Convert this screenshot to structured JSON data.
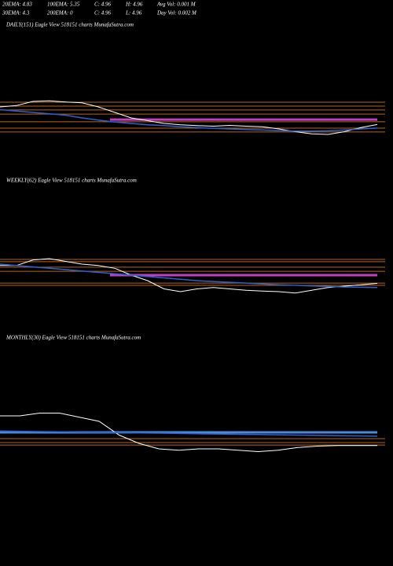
{
  "header": {
    "rows": [
      [
        "20EMA: 4.83",
        "100EMA: 5.35",
        "C: 4.96",
        "H: 4.96",
        "Avg Vol: 0.001 M"
      ],
      [
        "30EMA: 4.3",
        "200EMA: 0",
        "C: 4.96",
        "L: 4.96",
        "Day Vol: 0.002 M"
      ]
    ]
  },
  "chart_data": [
    {
      "type": "line",
      "title": "DAILY(151) Eagle View  518151 charts MunafaSutra.com",
      "ylim": [
        4.2,
        6.2
      ],
      "levels": [
        5.77,
        5.63,
        5.49,
        5.34,
        5.06,
        4.83,
        4.69
      ],
      "level_color": "#b8651b",
      "band": 5.14,
      "band_color": "#c040c0",
      "series": [
        {
          "color": "#ffffff",
          "values": [
            5.6,
            5.65,
            5.8,
            5.82,
            5.78,
            5.75,
            5.6,
            5.4,
            5.2,
            5.1,
            5.0,
            4.95,
            4.92,
            4.9,
            4.93,
            4.9,
            4.88,
            4.8,
            4.7,
            4.62,
            4.6,
            4.7,
            4.85,
            4.96
          ]
        },
        {
          "color": "#2f5fd0",
          "values": [
            5.5,
            5.45,
            5.4,
            5.35,
            5.3,
            5.2,
            5.12,
            5.05,
            5.0,
            4.95,
            4.92,
            4.88,
            4.85,
            4.82,
            4.8,
            4.78,
            4.76,
            4.74,
            4.72,
            4.72,
            4.73,
            4.76,
            4.8,
            4.83
          ]
        }
      ]
    },
    {
      "type": "line",
      "title": "WEEKLY(62) Eagle View  518151 charts MunafaSutra.com",
      "ylim": [
        4.2,
        6.2
      ],
      "levels": [
        5.77,
        5.69,
        5.49,
        5.34,
        4.91,
        4.83
      ],
      "level_color": "#b8651b",
      "band": 5.2,
      "band_color": "#c040c0",
      "series": [
        {
          "color": "#ffffff",
          "values": [
            5.55,
            5.55,
            5.75,
            5.8,
            5.7,
            5.6,
            5.55,
            5.45,
            5.2,
            5.0,
            4.7,
            4.6,
            4.7,
            4.75,
            4.7,
            4.65,
            4.62,
            4.6,
            4.55,
            4.65,
            4.75,
            4.8,
            4.85,
            4.9
          ]
        },
        {
          "color": "#2f5fd0",
          "values": [
            5.6,
            5.55,
            5.5,
            5.45,
            5.4,
            5.35,
            5.3,
            5.25,
            5.2,
            5.15,
            5.1,
            5.05,
            5.0,
            4.97,
            4.94,
            4.91,
            4.88,
            4.85,
            4.83,
            4.81,
            4.79,
            4.77,
            4.76,
            4.75
          ]
        }
      ]
    },
    {
      "type": "line",
      "title": "MONTHLY(30) Eagle View  518151 charts MunafaSutra.com",
      "ylim": [
        4.2,
        6.2
      ],
      "levels": [
        4.97,
        4.83,
        4.74
      ],
      "level_color": "#b8651b",
      "band": 5.2,
      "band_color": "#4a8ad8",
      "series": [
        {
          "color": "#ffffff",
          "values": [
            5.8,
            5.8,
            5.9,
            5.9,
            5.75,
            5.6,
            5.1,
            4.8,
            4.6,
            4.55,
            4.6,
            4.6,
            4.55,
            4.5,
            4.55,
            4.65,
            4.7,
            4.72,
            4.72,
            4.72
          ]
        },
        {
          "color": "#2f5fd0",
          "values": [
            5.25,
            5.24,
            5.23,
            5.22,
            5.21,
            5.2,
            5.19,
            5.18,
            5.17,
            5.16,
            5.15,
            5.14,
            5.13,
            5.12,
            5.11,
            5.1,
            5.09,
            5.08,
            5.07,
            5.06
          ]
        }
      ]
    }
  ]
}
